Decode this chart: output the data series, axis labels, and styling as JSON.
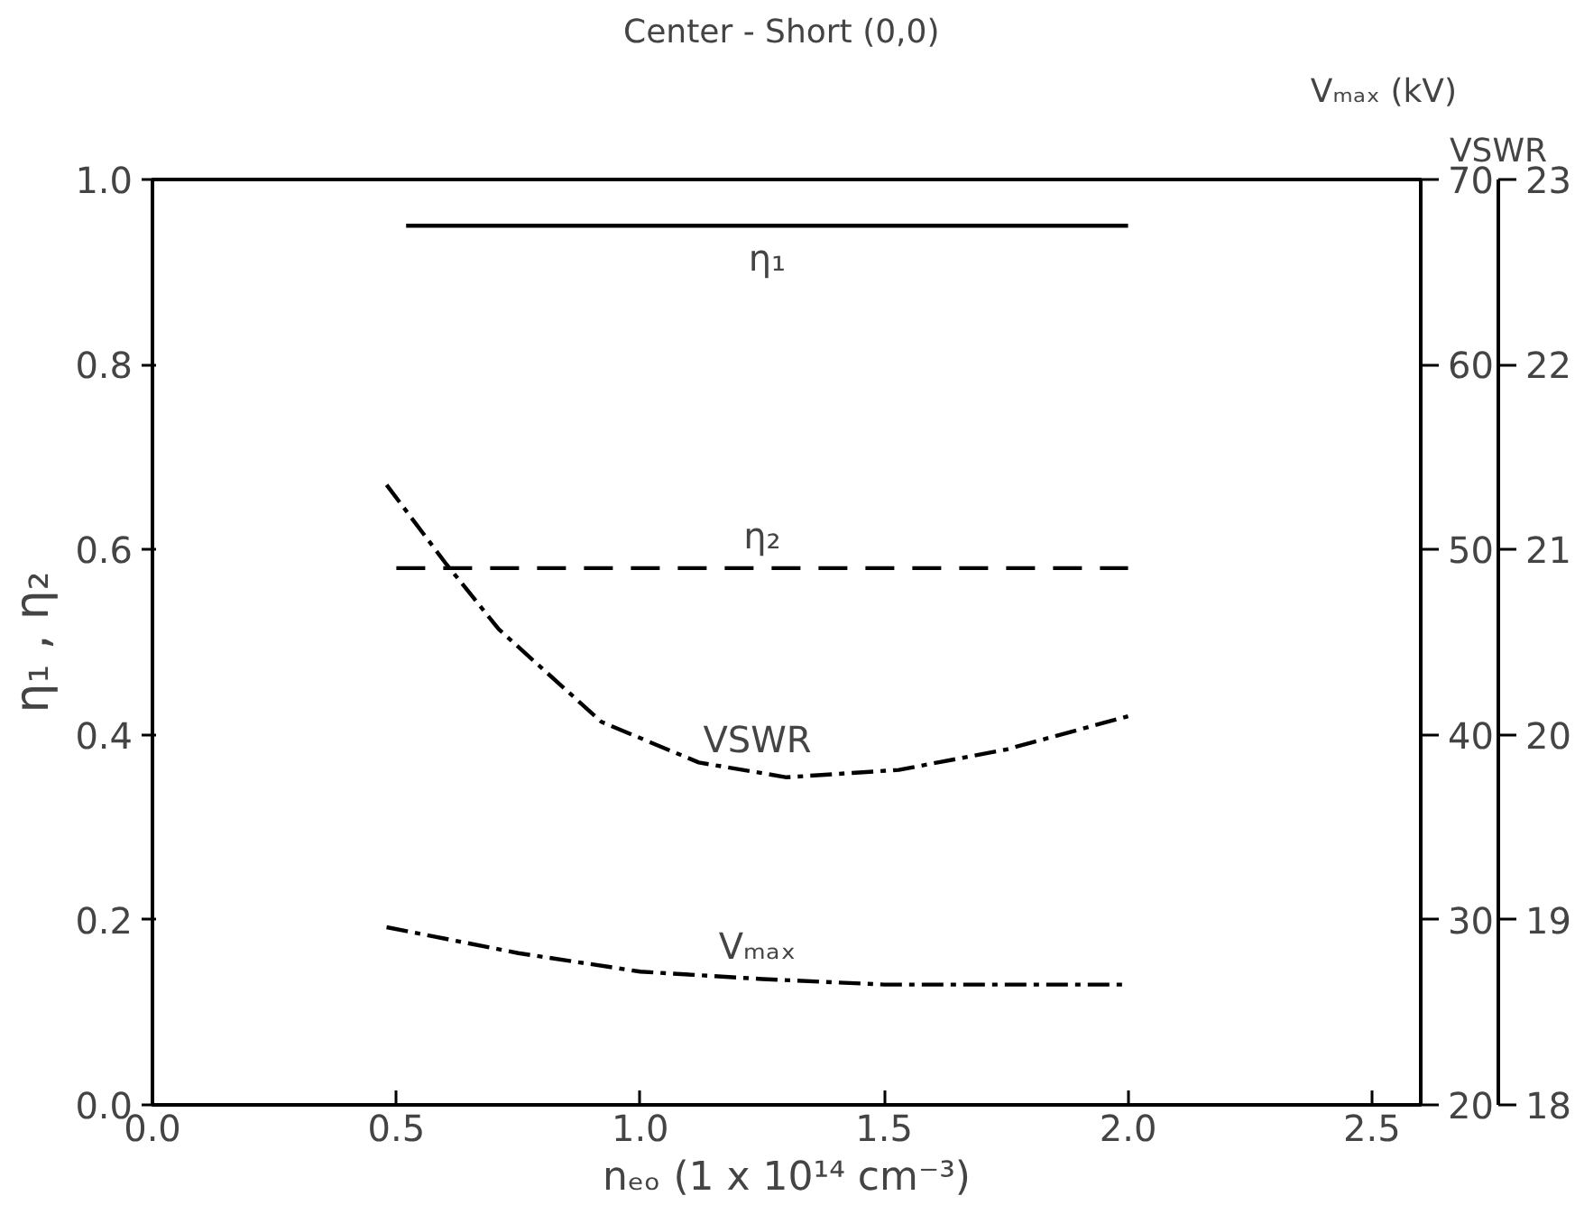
{
  "chart_data": {
    "type": "line",
    "title": "Center - Short  (0,0)",
    "xlabel": "nₑₒ (1 x 10¹⁴ cm⁻³)",
    "ylabel": "η₁ , η₂",
    "y2label": "Vₘₐₓ (kV)",
    "y3label": "VSWR",
    "xlim": [
      0,
      2.6
    ],
    "xticks": [
      {
        "value": 0,
        "label": "0.0"
      },
      {
        "value": 0.5,
        "label": "0.5"
      },
      {
        "value": 1,
        "label": "1.0"
      },
      {
        "value": 1.5,
        "label": "1.5"
      },
      {
        "value": 2,
        "label": "2.0"
      },
      {
        "value": 2.5,
        "label": "2.5"
      }
    ],
    "ylim": [
      0,
      1
    ],
    "yticks": [
      {
        "value": 0,
        "label": "0.0"
      },
      {
        "value": 0.2,
        "label": "0.2"
      },
      {
        "value": 0.4,
        "label": "0.4"
      },
      {
        "value": 0.6,
        "label": "0.6"
      },
      {
        "value": 0.8,
        "label": "0.8"
      },
      {
        "value": 1,
        "label": "1.0"
      }
    ],
    "y2lim": [
      20,
      70
    ],
    "y2ticks": [
      20,
      30,
      40,
      50,
      60,
      70
    ],
    "y3lim": [
      18,
      23
    ],
    "y3ticks": [
      18,
      19,
      20,
      21,
      22,
      23
    ],
    "grid": false,
    "marker": "none",
    "series": [
      {
        "name": "η₁",
        "color": "#000000",
        "line_style": "solid",
        "x": [
          0.52,
          2.0
        ],
        "values": [
          0.95,
          0.95
        ]
      },
      {
        "name": "η₂",
        "color": "#000000",
        "line_style": "dashed",
        "x": [
          0.5,
          2.0
        ],
        "values": [
          0.58,
          0.58
        ]
      },
      {
        "name": "VSWR",
        "color": "#000000",
        "line_style": "dashdot",
        "axis": "y3",
        "x": [
          0.48,
          0.6,
          0.71,
          0.92,
          1.12,
          1.3,
          1.53,
          1.75,
          2.0
        ],
        "values": [
          21.35,
          20.93,
          20.57,
          20.07,
          19.85,
          19.77,
          19.81,
          19.92,
          20.1
        ]
      },
      {
        "name": "Vₘₐₓ",
        "color": "#000000",
        "line_style": "dashdot",
        "axis": "y2",
        "x": [
          0.48,
          0.75,
          1.0,
          1.25,
          1.5,
          2.0
        ],
        "values": [
          29.6,
          28.2,
          27.2,
          26.8,
          26.5,
          26.5
        ]
      }
    ]
  }
}
